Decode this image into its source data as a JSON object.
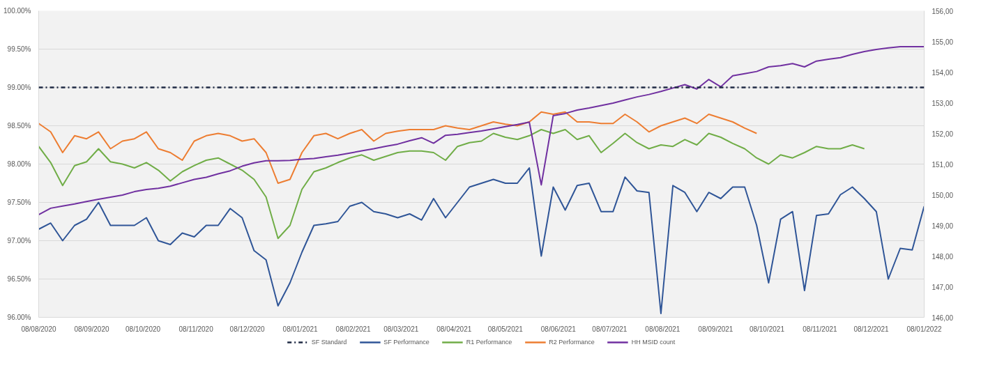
{
  "chart_data": {
    "type": "line",
    "x": [
      "2020-08-08",
      "2020-08-15",
      "2020-08-22",
      "2020-08-29",
      "2020-09-05",
      "2020-09-12",
      "2020-09-19",
      "2020-09-26",
      "2020-10-03",
      "2020-10-10",
      "2020-10-17",
      "2020-10-24",
      "2020-10-31",
      "2020-11-07",
      "2020-11-14",
      "2020-11-21",
      "2020-11-28",
      "2020-12-05",
      "2020-12-12",
      "2020-12-19",
      "2020-12-26",
      "2021-01-02",
      "2021-01-09",
      "2021-01-16",
      "2021-01-23",
      "2021-01-30",
      "2021-02-06",
      "2021-02-13",
      "2021-02-20",
      "2021-02-27",
      "2021-03-06",
      "2021-03-13",
      "2021-03-20",
      "2021-03-27",
      "2021-04-03",
      "2021-04-10",
      "2021-04-17",
      "2021-04-24",
      "2021-05-01",
      "2021-05-08",
      "2021-05-15",
      "2021-05-22",
      "2021-05-29",
      "2021-06-05",
      "2021-06-12",
      "2021-06-19",
      "2021-06-26",
      "2021-07-03",
      "2021-07-10",
      "2021-07-17",
      "2021-07-24",
      "2021-07-31",
      "2021-08-07",
      "2021-08-14",
      "2021-08-21",
      "2021-08-28",
      "2021-09-04",
      "2021-09-11",
      "2021-09-18",
      "2021-09-25",
      "2021-10-02",
      "2021-10-09",
      "2021-10-16",
      "2021-10-23",
      "2021-10-30",
      "2021-11-06",
      "2021-11-13",
      "2021-11-20",
      "2021-11-27",
      "2021-12-04",
      "2021-12-11",
      "2021-12-18",
      "2021-12-25",
      "2022-01-01",
      "2022-01-08"
    ],
    "series": [
      {
        "name": "SF Performance",
        "color": "#2f5597",
        "values": [
          97.15,
          97.23,
          97.0,
          97.2,
          97.28,
          97.5,
          97.2,
          97.2,
          97.2,
          97.3,
          97.0,
          96.95,
          97.1,
          97.05,
          97.2,
          97.2,
          97.42,
          97.3,
          96.87,
          96.75,
          96.15,
          96.45,
          96.85,
          97.2,
          97.22,
          97.25,
          97.45,
          97.5,
          97.38,
          97.35,
          97.3,
          97.35,
          97.27,
          97.55,
          97.3,
          97.5,
          97.7,
          97.75,
          97.8,
          97.75,
          97.75,
          97.95,
          96.8,
          97.7,
          97.4,
          97.72,
          97.75,
          97.38,
          97.38,
          97.83,
          97.65,
          97.63,
          96.05,
          97.72,
          97.63,
          97.38,
          97.63,
          97.55,
          97.7,
          97.7,
          97.2,
          96.45,
          97.28,
          97.38,
          96.35,
          97.33,
          97.35,
          97.6,
          97.7,
          97.55,
          97.38,
          96.5,
          96.9,
          96.88,
          97.45
        ]
      },
      {
        "name": "R1 Performance",
        "color": "#70ad47",
        "values": [
          98.23,
          98.02,
          97.72,
          97.98,
          98.03,
          98.2,
          98.03,
          98.0,
          97.95,
          98.02,
          97.92,
          97.78,
          97.9,
          97.98,
          98.05,
          98.08,
          98.0,
          97.92,
          97.8,
          97.57,
          97.03,
          97.2,
          97.67,
          97.9,
          97.95,
          98.02,
          98.08,
          98.12,
          98.05,
          98.1,
          98.15,
          98.17,
          98.17,
          98.15,
          98.05,
          98.23,
          98.28,
          98.3,
          98.4,
          98.35,
          98.32,
          98.37,
          98.45,
          98.4,
          98.45,
          98.32,
          98.37,
          98.15,
          98.27,
          98.4,
          98.28,
          98.2,
          98.25,
          98.23,
          98.32,
          98.25,
          98.4,
          98.35,
          98.27,
          98.2,
          98.08,
          98.0,
          98.12,
          98.08,
          98.15,
          98.23,
          98.2,
          98.2,
          98.25,
          98.2,
          null,
          null,
          null,
          null,
          null
        ]
      },
      {
        "name": "R2 Performance",
        "color": "#ed7d31",
        "values": [
          98.53,
          98.42,
          98.15,
          98.37,
          98.33,
          98.42,
          98.2,
          98.3,
          98.33,
          98.42,
          98.2,
          98.15,
          98.05,
          98.3,
          98.37,
          98.4,
          98.37,
          98.3,
          98.33,
          98.15,
          97.75,
          97.8,
          98.15,
          98.37,
          98.4,
          98.33,
          98.4,
          98.45,
          98.3,
          98.4,
          98.43,
          98.45,
          98.45,
          98.45,
          98.5,
          98.47,
          98.45,
          98.5,
          98.55,
          98.52,
          98.5,
          98.55,
          98.68,
          98.65,
          98.68,
          98.55,
          98.55,
          98.53,
          98.53,
          98.65,
          98.55,
          98.42,
          98.5,
          98.55,
          98.6,
          98.53,
          98.65,
          98.6,
          98.55,
          98.47,
          98.4,
          null,
          null,
          null,
          null,
          null,
          null,
          null,
          null,
          null,
          null,
          null,
          null,
          null,
          null
        ]
      },
      {
        "name": "HH MSID count",
        "color": "#7030a0",
        "axis": "y2",
        "values": [
          149.35,
          149.56,
          149.63,
          149.7,
          149.78,
          149.85,
          149.92,
          149.99,
          150.1,
          150.17,
          150.21,
          150.28,
          150.39,
          150.5,
          150.57,
          150.68,
          150.78,
          150.93,
          151.04,
          151.11,
          151.11,
          151.12,
          151.16,
          151.18,
          151.24,
          151.29,
          151.36,
          151.43,
          151.5,
          151.58,
          151.65,
          151.76,
          151.86,
          151.68,
          151.94,
          151.97,
          152.03,
          152.08,
          152.15,
          152.22,
          152.29,
          152.37,
          150.32,
          152.58,
          152.65,
          152.76,
          152.83,
          152.91,
          152.99,
          153.09,
          153.19,
          153.27,
          153.37,
          153.48,
          153.59,
          153.45,
          153.76,
          153.52,
          153.88,
          153.95,
          154.02,
          154.17,
          154.21,
          154.28,
          154.17,
          154.36,
          154.42,
          154.47,
          154.58,
          154.67,
          154.74,
          154.79,
          154.83,
          154.83,
          154.83
        ]
      }
    ],
    "ref_lines": [
      {
        "axis": "y",
        "value": 99,
        "label": "SF Standard",
        "color": "#1f2a44",
        "line_style": "dashdot"
      }
    ],
    "ylim": [
      96,
      100
    ],
    "yticks": [
      {
        "value": 96,
        "label": "96.00%"
      },
      {
        "value": 96.5,
        "label": "96.50%"
      },
      {
        "value": 97,
        "label": "97.00%"
      },
      {
        "value": 97.5,
        "label": "97.50%"
      },
      {
        "value": 98,
        "label": "98.00%"
      },
      {
        "value": 98.5,
        "label": "98.50%"
      },
      {
        "value": 99,
        "label": "99.00%"
      },
      {
        "value": 99.5,
        "label": "99.50%"
      },
      {
        "value": 100,
        "label": "100.00%"
      }
    ],
    "y2lim": [
      146,
      156
    ],
    "y2ticks": [
      {
        "value": 146,
        "label": "146,00"
      },
      {
        "value": 147,
        "label": "147,00"
      },
      {
        "value": 148,
        "label": "148,00"
      },
      {
        "value": 149,
        "label": "149,00"
      },
      {
        "value": 150,
        "label": "150,00"
      },
      {
        "value": 151,
        "label": "151,00"
      },
      {
        "value": 152,
        "label": "152,00"
      },
      {
        "value": 153,
        "label": "153,00"
      },
      {
        "value": 154,
        "label": "154,00"
      },
      {
        "value": 155,
        "label": "155,00"
      },
      {
        "value": 156,
        "label": "156,00"
      }
    ],
    "xlim": [
      "2020-08-08",
      "2022-01-08"
    ],
    "xticks": [
      {
        "value": "2020-08-08",
        "label": "08/08/2020"
      },
      {
        "value": "2020-09-08",
        "label": "08/09/2020"
      },
      {
        "value": "2020-10-08",
        "label": "08/10/2020"
      },
      {
        "value": "2020-11-08",
        "label": "08/11/2020"
      },
      {
        "value": "2020-12-08",
        "label": "08/12/2020"
      },
      {
        "value": "2021-01-08",
        "label": "08/01/2021"
      },
      {
        "value": "2021-02-08",
        "label": "08/02/2021"
      },
      {
        "value": "2021-03-08",
        "label": "08/03/2021"
      },
      {
        "value": "2021-04-08",
        "label": "08/04/2021"
      },
      {
        "value": "2021-05-08",
        "label": "08/05/2021"
      },
      {
        "value": "2021-06-08",
        "label": "08/06/2021"
      },
      {
        "value": "2021-07-08",
        "label": "08/07/2021"
      },
      {
        "value": "2021-08-08",
        "label": "08/08/2021"
      },
      {
        "value": "2021-09-08",
        "label": "08/09/2021"
      },
      {
        "value": "2021-10-08",
        "label": "08/10/2021"
      },
      {
        "value": "2021-11-08",
        "label": "08/11/2021"
      },
      {
        "value": "2021-12-08",
        "label": "08/12/2021"
      },
      {
        "value": "2022-01-08",
        "label": "08/01/2022"
      }
    ],
    "grid": "y",
    "legend": "bottom",
    "line_style": "solid"
  }
}
